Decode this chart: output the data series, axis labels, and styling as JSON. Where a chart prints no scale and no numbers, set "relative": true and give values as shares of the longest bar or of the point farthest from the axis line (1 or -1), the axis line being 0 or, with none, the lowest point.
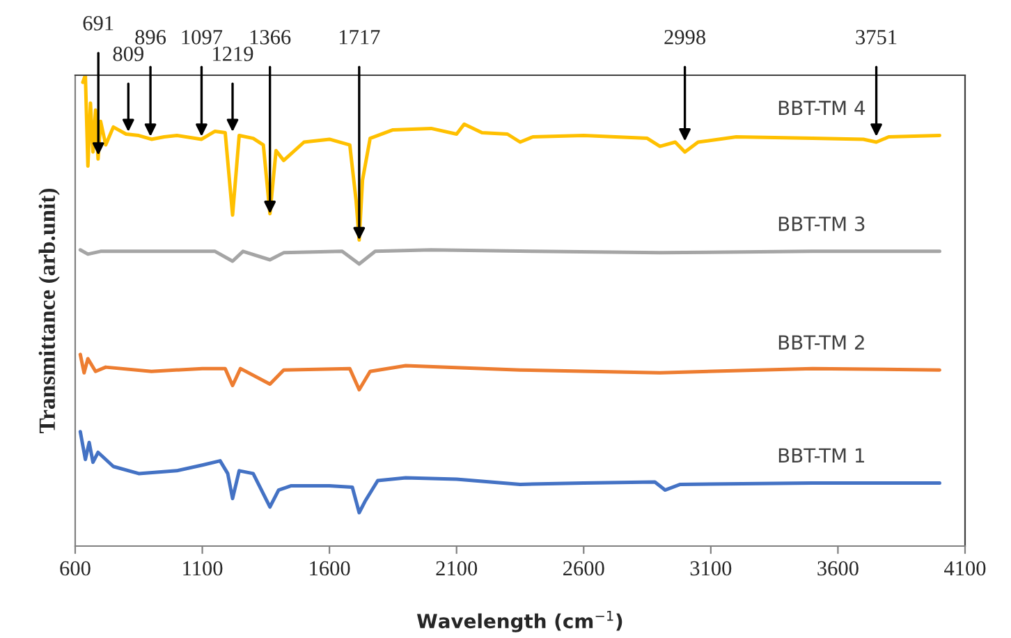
{
  "chart_data": {
    "type": "line",
    "relative": true,
    "xlabel": "Wavelength (cm$^{−1}$)",
    "ylabel": "Transmittance (arb.unit)",
    "xlim": [
      600,
      4100
    ],
    "xticks": [
      600,
      1100,
      1600,
      2100,
      2600,
      3100,
      3600,
      4100
    ],
    "grid": false,
    "legend": false,
    "tick_labels": "x",
    "series": [
      {
        "name": "BBT-TM 1",
        "color": "#4472c4",
        "x": [
          620,
          640,
          655,
          670,
          690,
          750,
          850,
          1000,
          1100,
          1170,
          1200,
          1219,
          1245,
          1300,
          1366,
          1400,
          1450,
          1600,
          1690,
          1717,
          1740,
          1790,
          1900,
          2100,
          2350,
          2600,
          2880,
          2920,
          2980,
          3500,
          4000
        ],
        "values": [
          0.243,
          0.184,
          0.22,
          0.178,
          0.199,
          0.169,
          0.154,
          0.16,
          0.172,
          0.181,
          0.154,
          0.101,
          0.16,
          0.154,
          0.083,
          0.119,
          0.128,
          0.128,
          0.125,
          0.071,
          0.095,
          0.139,
          0.145,
          0.142,
          0.131,
          0.134,
          0.136,
          0.119,
          0.131,
          0.134,
          0.134
        ]
      },
      {
        "name": "BBT-TM 2",
        "color": "#ed7d31",
        "x": [
          620,
          635,
          650,
          680,
          720,
          900,
          1100,
          1190,
          1219,
          1250,
          1366,
          1420,
          1680,
          1717,
          1760,
          1900,
          2350,
          2900,
          3500,
          4000
        ],
        "values": [
          0.407,
          0.368,
          0.398,
          0.371,
          0.38,
          0.371,
          0.377,
          0.377,
          0.341,
          0.377,
          0.344,
          0.374,
          0.377,
          0.332,
          0.371,
          0.383,
          0.374,
          0.368,
          0.377,
          0.374
        ]
      },
      {
        "name": "BBT-TM 3",
        "color": "#a5a5a5",
        "x": [
          620,
          650,
          700,
          900,
          1150,
          1219,
          1260,
          1366,
          1420,
          1650,
          1717,
          1780,
          2000,
          2400,
          2900,
          3500,
          4000
        ],
        "values": [
          0.629,
          0.62,
          0.626,
          0.626,
          0.626,
          0.605,
          0.626,
          0.608,
          0.623,
          0.626,
          0.599,
          0.626,
          0.629,
          0.626,
          0.623,
          0.626,
          0.626
        ]
      },
      {
        "name": "BBT-TM 4",
        "color": "#ffc000",
        "x": [
          630,
          640,
          650,
          660,
          670,
          680,
          690,
          700,
          720,
          750,
          800,
          850,
          900,
          950,
          1000,
          1097,
          1150,
          1190,
          1219,
          1245,
          1300,
          1340,
          1366,
          1390,
          1420,
          1500,
          1600,
          1680,
          1705,
          1717,
          1730,
          1760,
          1850,
          2000,
          2100,
          2130,
          2200,
          2300,
          2350,
          2400,
          2600,
          2850,
          2900,
          2960,
          2998,
          3050,
          3200,
          3500,
          3700,
          3751,
          3800,
          4000
        ],
        "values": [
          0.985,
          1.0,
          0.807,
          0.941,
          0.837,
          0.926,
          0.822,
          0.902,
          0.852,
          0.89,
          0.875,
          0.872,
          0.864,
          0.869,
          0.872,
          0.864,
          0.881,
          0.878,
          0.703,
          0.872,
          0.866,
          0.852,
          0.706,
          0.84,
          0.819,
          0.858,
          0.864,
          0.852,
          0.733,
          0.65,
          0.777,
          0.866,
          0.884,
          0.887,
          0.875,
          0.896,
          0.878,
          0.875,
          0.858,
          0.869,
          0.872,
          0.866,
          0.849,
          0.858,
          0.837,
          0.858,
          0.869,
          0.866,
          0.864,
          0.858,
          0.869,
          0.872
        ]
      }
    ],
    "annotations": [
      {
        "text": "691",
        "x": 691,
        "y": 0.83
      },
      {
        "text": "809",
        "x": 809,
        "y": 0.88
      },
      {
        "text": "896",
        "x": 896,
        "y": 0.87
      },
      {
        "text": "1097",
        "x": 1097,
        "y": 0.87
      },
      {
        "text": "1219",
        "x": 1219,
        "y": 0.88
      },
      {
        "text": "1366",
        "x": 1366,
        "y": 0.706
      },
      {
        "text": "1717",
        "x": 1717,
        "y": 0.65
      },
      {
        "text": "2998",
        "x": 2998,
        "y": 0.86
      },
      {
        "text": "3751",
        "x": 3751,
        "y": 0.87
      }
    ]
  }
}
